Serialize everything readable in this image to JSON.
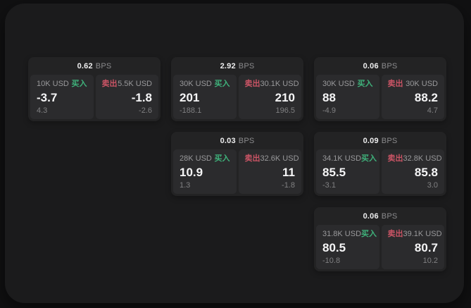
{
  "labels": {
    "bps_unit": "BPS",
    "buy": "买入",
    "sell": "卖出"
  },
  "colors": {
    "buy_green": "#3fb27b",
    "sell_red": "#ca5465",
    "panel_bg": "#1b1b1c",
    "card_bg": "#232324",
    "cell_bg": "#2b2b2d"
  },
  "cards": [
    {
      "bps": "0.62",
      "buy": {
        "notional": "10K USD",
        "price": "-3.7",
        "sub": "4.3"
      },
      "sell": {
        "notional": "5.5K USD",
        "price": "-1.8",
        "sub": "-2.6"
      }
    },
    {
      "bps": "2.92",
      "buy": {
        "notional": "30K USD",
        "price": "201",
        "sub": "-188.1"
      },
      "sell": {
        "notional": "30.1K USD",
        "price": "210",
        "sub": "196.5"
      }
    },
    {
      "bps": "0.06",
      "buy": {
        "notional": "30K USD",
        "price": "88",
        "sub": "-4.9"
      },
      "sell": {
        "notional": "30K USD",
        "price": "88.2",
        "sub": "4.7"
      }
    },
    {
      "bps": "0.03",
      "buy": {
        "notional": "28K USD",
        "price": "10.9",
        "sub": "1.3"
      },
      "sell": {
        "notional": "32.6K USD",
        "price": "11",
        "sub": "-1.8"
      }
    },
    {
      "bps": "0.09",
      "buy": {
        "notional": "34.1K USD",
        "price": "85.5",
        "sub": "-3.1"
      },
      "sell": {
        "notional": "32.8K USD",
        "price": "85.8",
        "sub": "3.0"
      }
    },
    {
      "bps": "0.06",
      "buy": {
        "notional": "31.8K USD",
        "price": "80.5",
        "sub": "-10.8"
      },
      "sell": {
        "notional": "39.1K USD",
        "price": "80.7",
        "sub": "10.2"
      }
    }
  ]
}
